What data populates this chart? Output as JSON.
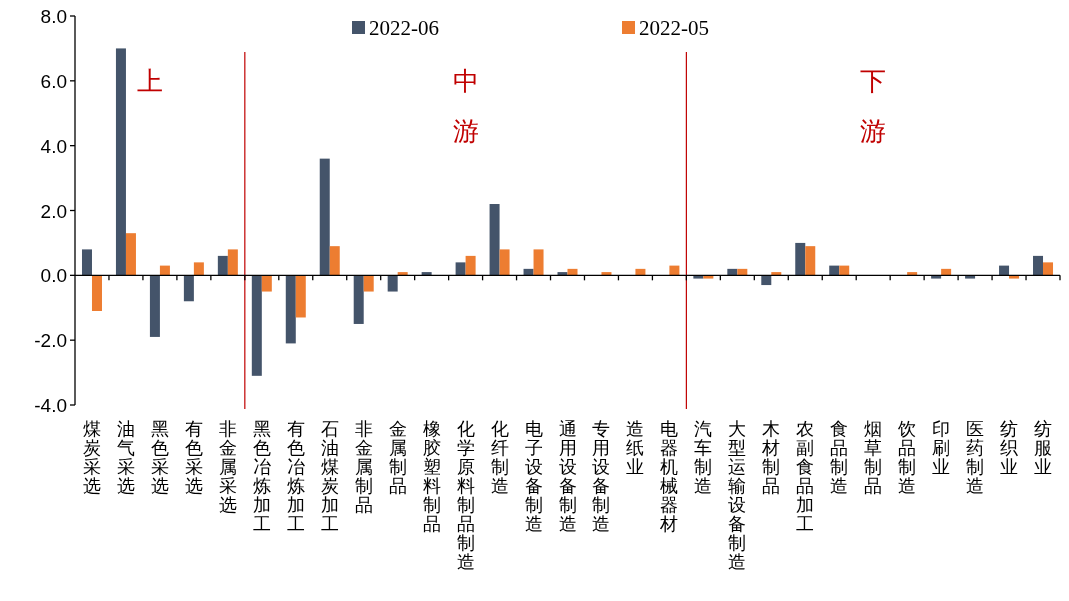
{
  "chart_data": {
    "type": "bar",
    "categories": [
      "煤炭采选",
      "油气采选",
      "黑色采选",
      "有色采选",
      "非金属采选",
      "黑色冶炼加工",
      "有色冶炼加工",
      "石油煤炭加工",
      "非金属制品",
      "金属制品",
      "橡胶塑料制品",
      "化学原料制品制造",
      "化纤制造",
      "电子设备制造",
      "通用设备制造",
      "专用设备制造",
      "造纸业",
      "电器机械器材",
      "汽车制造",
      "大型运输设备制造",
      "木材制品",
      "农副食品加工",
      "食品制造",
      "烟草制品",
      "饮品制造",
      "印刷业",
      "医药制造",
      "纺织业",
      "纺服业"
    ],
    "series": [
      {
        "name": "2022-06",
        "color": "#44546a",
        "values": [
          0.8,
          7.0,
          -1.9,
          -0.8,
          0.6,
          -3.1,
          -2.1,
          3.6,
          -1.5,
          -0.5,
          0.1,
          0.4,
          2.2,
          0.2,
          0.1,
          0,
          0,
          0,
          -0.1,
          0.2,
          -0.3,
          1.0,
          0.3,
          0,
          0,
          -0.1,
          -0.1,
          0.3,
          0.6
        ]
      },
      {
        "name": "2022-05",
        "color": "#ed7d31",
        "values": [
          -1.1,
          1.3,
          0.3,
          0.4,
          0.8,
          -0.5,
          -1.3,
          0.9,
          -0.5,
          0.1,
          0,
          0.6,
          0.8,
          0.8,
          0.2,
          0.1,
          0.2,
          0.3,
          -0.1,
          0.2,
          0.1,
          0.9,
          0.3,
          0,
          0.1,
          0.2,
          0,
          -0.1,
          0.4
        ]
      }
    ],
    "ylim": [
      -4,
      8
    ],
    "yticks": [
      {
        "value": 8,
        "label": "8.0"
      },
      {
        "value": 6,
        "label": "6.0"
      },
      {
        "value": 4,
        "label": "4.0"
      },
      {
        "value": 2,
        "label": "2.0"
      },
      {
        "value": 0,
        "label": "0.0"
      },
      {
        "value": -2,
        "label": "-2.0"
      },
      {
        "value": -4,
        "label": "-4.0"
      }
    ],
    "annotations": [
      "上",
      "中游",
      "下游"
    ],
    "legend": "top",
    "grid": false
  }
}
